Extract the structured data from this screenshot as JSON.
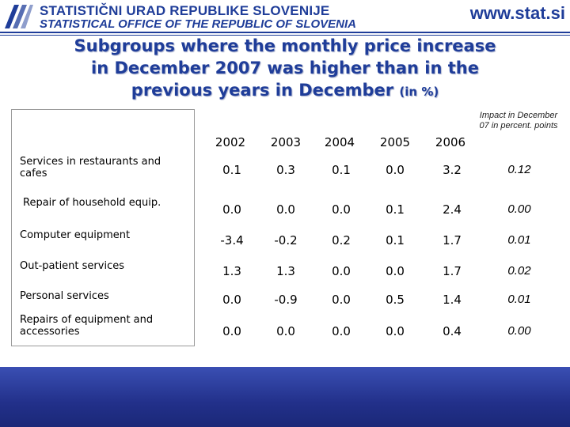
{
  "header": {
    "org_line1": "STATISTIČNI URAD REPUBLIKE SLOVENIJE",
    "org_line2": "STATISTICAL OFFICE OF THE REPUBLIC OF SLOVENIA",
    "url": "www.stat.si",
    "accent_color": "#1f3d99"
  },
  "title": {
    "line1": "Subgroups where the monthly price increase",
    "line2": "in December 2007 was higher than in the",
    "line3": "previous years in December",
    "unit": "(in %)"
  },
  "table": {
    "columns": [
      "2002",
      "2003",
      "2004",
      "2005",
      "2006"
    ],
    "impact_header": "Impact in December 07 in percent. points",
    "rows": [
      {
        "label": "Services in restaurants and cafes",
        "values": [
          "0.1",
          "0.3",
          "0.1",
          "0.0",
          "3.2"
        ],
        "impact": "0.12"
      },
      {
        "label": "Repair of household equip.",
        "values": [
          "0.0",
          "0.0",
          "0.0",
          "0.1",
          "2.4"
        ],
        "impact": "0.00"
      },
      {
        "label": "Computer equipment",
        "values": [
          "-3.4",
          "-0.2",
          "0.2",
          "0.1",
          "1.7"
        ],
        "impact": "0.01"
      },
      {
        "label": "Out-patient services",
        "values": [
          "1.3",
          "1.3",
          "0.0",
          "0.0",
          "1.7"
        ],
        "impact": "0.02"
      },
      {
        "label": "Personal services",
        "values": [
          "0.0",
          "-0.9",
          "0.0",
          "0.5",
          "1.4"
        ],
        "impact": "0.01"
      },
      {
        "label": "Repairs of equipment and accessories",
        "values": [
          "0.0",
          "0.0",
          "0.0",
          "0.0",
          "0.4"
        ],
        "impact": "0.00"
      }
    ]
  }
}
